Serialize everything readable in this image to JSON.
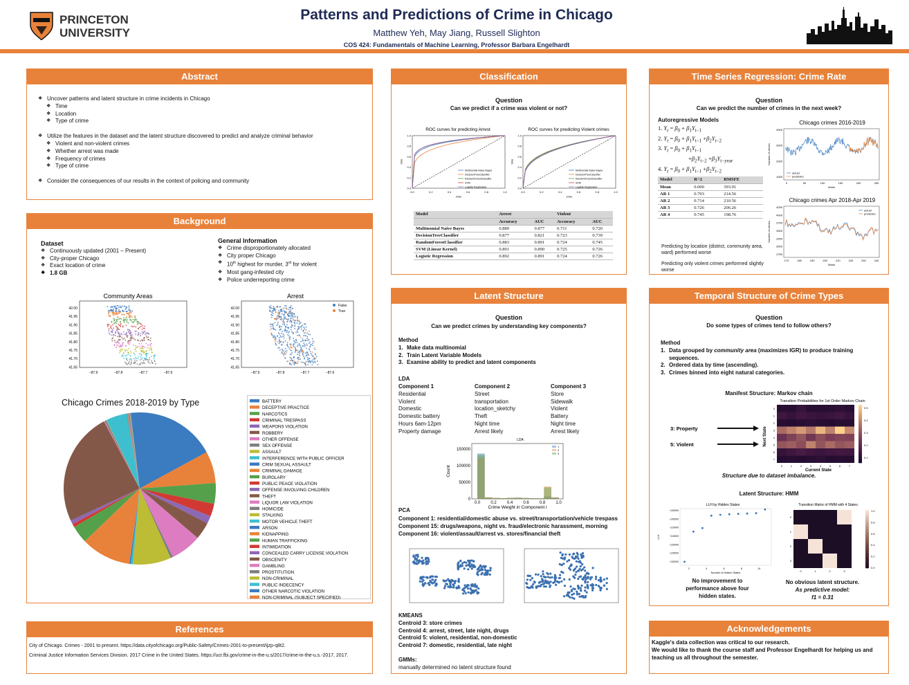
{
  "header": {
    "logo_line1": "PRINCETON",
    "logo_line2": "UNIVERSITY",
    "title": "Patterns and Predictions of Crime in Chicago",
    "authors": "Matthew Yeh, May Jiang, Russell Slighton",
    "course": "COS 424: Fundamentals of Machine Learning, Professor Barbara Engelhardt"
  },
  "abstract": {
    "heading": "Abstract",
    "b1": "Uncover patterns and latent structure in crime incidents in Chicago",
    "b1_sub": [
      "Time",
      "Location",
      "Type of crime"
    ],
    "b2": "Utilize the features in the dataset and the latent structure discovered to predict and analyze criminal behavior",
    "b2_sub": [
      "Violent and non-violent crimes",
      "Whether arrest was made",
      "Frequency of crimes",
      "Type of crime"
    ],
    "b3": "Consider the consequences of our results in the context of policing and community"
  },
  "background": {
    "heading": "Background",
    "dataset_title": "Dataset",
    "dataset_items": [
      "Continuously updated (2001 – Present)",
      "City-proper Chicago",
      "Exact location of crime",
      "1.8 GB"
    ],
    "general_title": "General Information",
    "general_items": [
      "Crime disproportionately allocated",
      "City proper Chicago",
      "Most gang-infested city",
      "Police underreporting crime"
    ],
    "g3_a": "10",
    "g3_sup1": "th",
    "g3_b": " highest for murder, 3",
    "g3_sup2": "rd",
    "g3_c": " for violent",
    "map1_title": "Community Areas",
    "map2_title": "Arrest",
    "map_yticks": [
      "42.00",
      "41.95",
      "41.90",
      "41.85",
      "41.80",
      "41.75",
      "41.70",
      "41.65"
    ],
    "map_xticks": [
      "−87.9",
      "−87.8",
      "−87.7",
      "−87.6"
    ],
    "arrest_legend": [
      "False",
      "True"
    ],
    "pie_title": "Chicago Crimes 2018-2019 by Type"
  },
  "pie_data": {
    "type": "pie",
    "labels": [
      "BATTERY",
      "DECEPTIVE PRACTICE",
      "NARCOTICS",
      "CRIMINAL TRESPASS",
      "WEAPONS VIOLATION",
      "ROBBERY",
      "OTHER OFFENSE",
      "SEX OFFENSE",
      "ASSAULT",
      "INTERFERENCE WITH PUBLIC OFFICER",
      "CRIM SEXUAL ASSAULT",
      "CRIMINAL DAMAGE",
      "BURGLARY",
      "PUBLIC PEACE VIOLATION",
      "OFFENSE INVOLVING CHILDREN",
      "THEFT",
      "LIQUOR LAW VIOLATION",
      "HOMICIDE",
      "STALKING",
      "MOTOR VEHICLE THEFT",
      "ARSON",
      "KIDNAPPING",
      "HUMAN TRAFFICKING",
      "INTIMIDATION",
      "CONCEALED CARRY LICENSE VIOLATION",
      "OBSCENITY",
      "GAMBLING",
      "PROSTITUTION",
      "NON-CRIMINAL",
      "PUBLIC INDECENCY",
      "OTHER NARCOTIC VIOLATION",
      "NON-CRIMINAL (SUBJECT SPECIFIED)"
    ],
    "colors": [
      "#3b7bbf",
      "#e8823a",
      "#55a04a",
      "#d03a33",
      "#8d68b5",
      "#845848",
      "#dd7cc0",
      "#7f7f7f",
      "#bcbc35",
      "#3dbfcf",
      "#3b7bbf",
      "#e8823a",
      "#55a04a",
      "#d03a33",
      "#8d68b5",
      "#845848",
      "#dd7cc0",
      "#7f7f7f",
      "#bcbc35",
      "#3dbfcf",
      "#3b7bbf",
      "#e8823a",
      "#55a04a",
      "#d03a33",
      "#8d68b5",
      "#845848",
      "#dd7cc0",
      "#7f7f7f",
      "#bcbc35",
      "#3dbfcf",
      "#3b7bbf",
      "#e8823a"
    ],
    "values": [
      18.5,
      6.6,
      4.3,
      2.6,
      1.6,
      3.6,
      6.4,
      0.5,
      7.9,
      0.4,
      0.3,
      10.4,
      3.6,
      0.7,
      0.8,
      23.5,
      0.2,
      0.3,
      0.1,
      4.3,
      0.1,
      0.1,
      0.05,
      0.05,
      0.05,
      0.05,
      0.05,
      0.2,
      0.05,
      0.05,
      0.05,
      0.05
    ]
  },
  "classification": {
    "heading": "Classification",
    "q_title": "Question",
    "q_text": "Can we predict if a crime was violent or not?",
    "roc1_title": "ROC curves for predicting Arrest",
    "roc2_title": "ROC curves for predicting Violent crimes",
    "roc_ticks": [
      "0.0",
      "0.2",
      "0.4",
      "0.6",
      "0.8",
      "1.0"
    ],
    "xlabel": "FPR",
    "ylabel": "TPR",
    "legend": [
      "Multinomial Naive Bayes",
      "DecisionTreeClassifier",
      "RandomForestClassifier",
      "SVM",
      "Logistic Regression"
    ],
    "table_head1": [
      "Model",
      "Arrest",
      "",
      "Violent",
      ""
    ],
    "table_head2": [
      "",
      "Accuracy",
      "AUC",
      "Accuracy",
      "AUC"
    ],
    "table_rows": [
      [
        "Multinomial Naive Bayes",
        "0.889",
        "0.877",
        "0.711",
        "0.720"
      ],
      [
        "DecisionTreeClassifier",
        "0.877",
        "0.821",
        "0.723",
        "0.739"
      ],
      [
        "RandomForestClassifier",
        "0.883",
        "0.891",
        "0.724",
        "0.745"
      ],
      [
        "SVM (Linear Kernel)",
        "0.891",
        "0.890",
        "0.725",
        "0.726"
      ],
      [
        "Logistic Regression",
        "0.892",
        "0.891",
        "0.724",
        "0.726"
      ]
    ]
  },
  "roc_data": {
    "type": "line",
    "colors": [
      "#3b7bbf",
      "#e8823a",
      "#55a04a",
      "#d03a33",
      "#8d68b5"
    ],
    "arrest_auc": [
      0.877,
      0.821,
      0.891,
      0.89,
      0.891
    ],
    "violent_auc": [
      0.72,
      0.739,
      0.745,
      0.726,
      0.726
    ]
  },
  "latent": {
    "heading": "Latent Structure",
    "q_title": "Question",
    "q_text": "Can we predict crimes by understanding key components?",
    "method_title": "Method",
    "method_items": [
      "Make data multinomial",
      "Train Latent Variable Models",
      "Examine ability to predict and latent components"
    ],
    "lda_title": "LDA",
    "comp_titles": [
      "Component 1",
      "Component 2",
      "Component 3"
    ],
    "comp1": [
      "Residential",
      "Violent",
      "Domestic",
      "Domestic battery",
      "Hours 6am-12pm",
      "Property damage"
    ],
    "comp2": [
      "Street",
      "transportation",
      "location_sketchy",
      "Theft",
      "Night time",
      "Arrest likely"
    ],
    "comp3": [
      "Store",
      "Sidewalk",
      "Violent",
      "Battery",
      "Night time",
      "Arrest likely"
    ],
    "lda_chart_title": "LDA",
    "lda_xlabel": "Crime Weight in Component i",
    "lda_ylabel": "Count",
    "lda_yticks": [
      "0",
      "50000",
      "100000",
      "150000"
    ],
    "lda_xticks": [
      "0.0",
      "0.2",
      "0.4",
      "0.6",
      "0.8",
      "1.0"
    ],
    "lda_legend": [
      "1",
      "2",
      "3"
    ],
    "pca_title": "PCA",
    "pca_lines": [
      "Component   1: residential/domestic abuse vs. street/transportation/vehicle trespass",
      "Component 15: drugs/weapons, night vs. fraud/electronic harassment, morning",
      "Component 16: violent/assault/arrest vs. stores/financial theft"
    ],
    "kmeans_title": "KMEANS",
    "kmeans_lines": [
      "Centroid 3: store crimes",
      "Centroid 4: arrest, street, late night, drugs",
      "Centroid 5: violent, residential, non-domestic",
      "Centroid 7: domestic, residential, late night"
    ],
    "gmm_title": "GMMs:",
    "gmm_text": "manually determined no latent structure found"
  },
  "timeseries": {
    "heading": "Time Series Regression: Crime Rate",
    "q_title": "Question",
    "q_text": "Can we predict the number of crimes in the next week?",
    "ar_title": "Autoregressive Models",
    "ar1": "1.",
    "ar2": "2.",
    "ar3": "3.",
    "ar4": "4.",
    "table_head": [
      "Model",
      "R^2",
      "RMSFE"
    ],
    "table_rows": [
      [
        "Mean",
        "0.000",
        "393.91"
      ],
      [
        "AR 1",
        "0.703",
        "214.56"
      ],
      [
        "AR 2",
        "0.714",
        "210.56"
      ],
      [
        "AR 3",
        "0.726",
        "206.26"
      ],
      [
        "AR 4",
        "0.745",
        "198.76"
      ]
    ],
    "note1": "Predicting by location (district, community area, ward) performed worse",
    "note2": "Predicting only violent crimes performed slightly worse",
    "chart1_title": "Chicago crimes 2016-2019",
    "chart2_title": "Chicago crimes Apr 2018-Apr 2019",
    "xlabel": "Week",
    "ylabel": "Number of crimes",
    "legend": [
      "actual",
      "predicted"
    ],
    "c1_yticks": [
      "4000",
      "3000",
      "2000",
      "1000"
    ],
    "c1_xticks": [
      "0",
      "50",
      "100",
      "150",
      "200",
      "250"
    ],
    "c2_yticks": [
      "4250",
      "4000",
      "3750",
      "3500",
      "3250",
      "3000",
      "2750"
    ],
    "c2_xticks": [
      "170",
      "180",
      "190",
      "200",
      "210",
      "220",
      "230",
      "240"
    ]
  },
  "temporal": {
    "heading": "Temporal Structure of Crime Types",
    "q_title": "Question",
    "q_text": "Do some types of crimes tend to follow others?",
    "method_title": "Method",
    "m1a": "Data grouped by ",
    "m1b": "community area",
    "m1c": " (maximizes IGR) to produce training sequences.",
    "m2": "Ordered data by time (ascending).",
    "m3": "Crimes binned into eight natural categories.",
    "manifest_title": "Manifest Structure: Markov chain",
    "heatmap_title": "Transition Probabilities for 1st Order Markov Chain",
    "arrow1": "3: Property",
    "arrow2": "5: Violent",
    "hm_xlabel": "Current State",
    "hm_ylabel": "Next State",
    "hm_note": "Structure due to dataset imbalance.",
    "latent_title": "Latent Structure: HMM",
    "llh_title": "LLH by Hidden States",
    "llh_xlabel": "Number of Hidden States",
    "llh_ylabel": "LLH",
    "llh_yticks": [
      "−100000",
      "−105000",
      "−110000",
      "−115000",
      "−120000",
      "−125000",
      "−130000"
    ],
    "llh_xticks": [
      "2",
      "4",
      "6",
      "8",
      "10"
    ],
    "hmm_title": "Transition Matrix of HMM with 4 States",
    "hmm_ticks": [
      "0",
      "1",
      "2",
      "3"
    ],
    "cbar1_ticks": [
      "0.5",
      "0.4",
      "0.3",
      "0.2",
      "0.1"
    ],
    "cbar2_ticks": [
      "1.0",
      "0.8",
      "0.6",
      "0.4",
      "0.2",
      "0.0"
    ],
    "note_left": "No improvement to performance above four hidden states.",
    "note_right1": "No obvious latent structure.",
    "note_right2": "As predictive model:",
    "note_right3": "f1 = 0.31"
  },
  "llh_data": {
    "type": "scatter",
    "x": [
      1,
      2,
      3,
      4,
      5,
      6,
      7,
      8,
      9,
      10
    ],
    "y": [
      -129000,
      -112000,
      -110000,
      -103000,
      -102500,
      -102200,
      -102000,
      -101800,
      -101600,
      -99500
    ]
  },
  "references": {
    "heading": "References",
    "ref1": "City of Chicago. Crimes - 2001 to present. https://data.cityofchicago.org/Public-Safety/Crimes-2001-to-present/ijzp-q8t2.",
    "ref2": "Criminal Justice Information Services Division. 2017 Crime in the United States. https://ucr.fbi.gov/crime-in-the-u.s/2017/crime-in-the-u.s.-2017, 2017."
  },
  "acknowledgements": {
    "heading": "Acknowledgements",
    "line1": "Kaggle's data collection was critical to our research.",
    "line2": "We would like to thank the course staff and Professor Engelhardt for helping us and teaching us all throughout the semester."
  }
}
